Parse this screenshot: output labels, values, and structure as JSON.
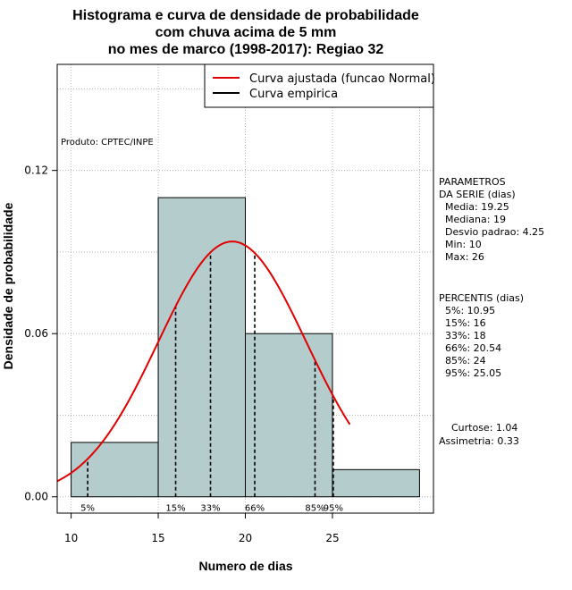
{
  "chart_data": {
    "type": "bar",
    "title_lines": [
      "Histograma e curva de densidade de probabilidade",
      "com chuva acima de 5 mm",
      "no mes de marco (1998-2017): Regiao 32"
    ],
    "xlabel": "Numero de dias",
    "ylabel": "Densidade de probabilidade",
    "xlim": [
      9.2,
      30.8
    ],
    "ylim": [
      -0.006,
      0.159
    ],
    "x_ticks": [
      10,
      15,
      20,
      25
    ],
    "x_tick_labels": [
      "10",
      "15",
      "20",
      "25"
    ],
    "y_ticks": [
      0.0,
      0.06,
      0.12
    ],
    "y_tick_labels": [
      "0.00",
      "0.06",
      "0.12"
    ],
    "grid_x": [
      10,
      15,
      20,
      25,
      30
    ],
    "grid_y": [
      0.0,
      0.03,
      0.06,
      0.09,
      0.12,
      0.15
    ],
    "histogram": {
      "bin_edges": [
        10,
        15,
        20,
        25,
        30
      ],
      "densities": [
        0.02,
        0.11,
        0.06,
        0.01
      ],
      "fill_color": "#b5cccc"
    },
    "normal_curve": {
      "name": "Curva ajustada (funcao Normal)",
      "mean": 19.25,
      "sd": 4.25,
      "x_range": [
        9.2,
        26
      ],
      "color": "#e00000"
    },
    "empirical_curve": {
      "name": "Curva empirica",
      "color": "#000000"
    },
    "percentile_lines": [
      {
        "x": 10.95,
        "label": "5%"
      },
      {
        "x": 16,
        "label": "15%"
      },
      {
        "x": 18,
        "label": "33%"
      },
      {
        "x": 20.54,
        "label": "66%"
      },
      {
        "x": 24,
        "label": "85%"
      },
      {
        "x": 25.05,
        "label": "95%"
      }
    ],
    "legend_position": "top-right"
  },
  "producer_note": "Produto: CPTEC/INPE",
  "side_panel": {
    "params_lines": [
      "PARAMETROS",
      "DA SERIE (dias)",
      "  Media: 19.25",
      "  Mediana: 19",
      "  Desvio padrao: 4.25",
      "  Min: 10",
      "  Max: 26"
    ],
    "percentis_lines": [
      "PERCENTIS (dias)",
      "  5%: 10.95",
      "  15%: 16",
      "  33%: 18",
      "  66%: 20.54",
      "  85%: 24",
      "  95%: 25.05"
    ],
    "stats_lines": [
      "    Curtose: 1.04",
      "Assimetria: 0.33"
    ]
  }
}
